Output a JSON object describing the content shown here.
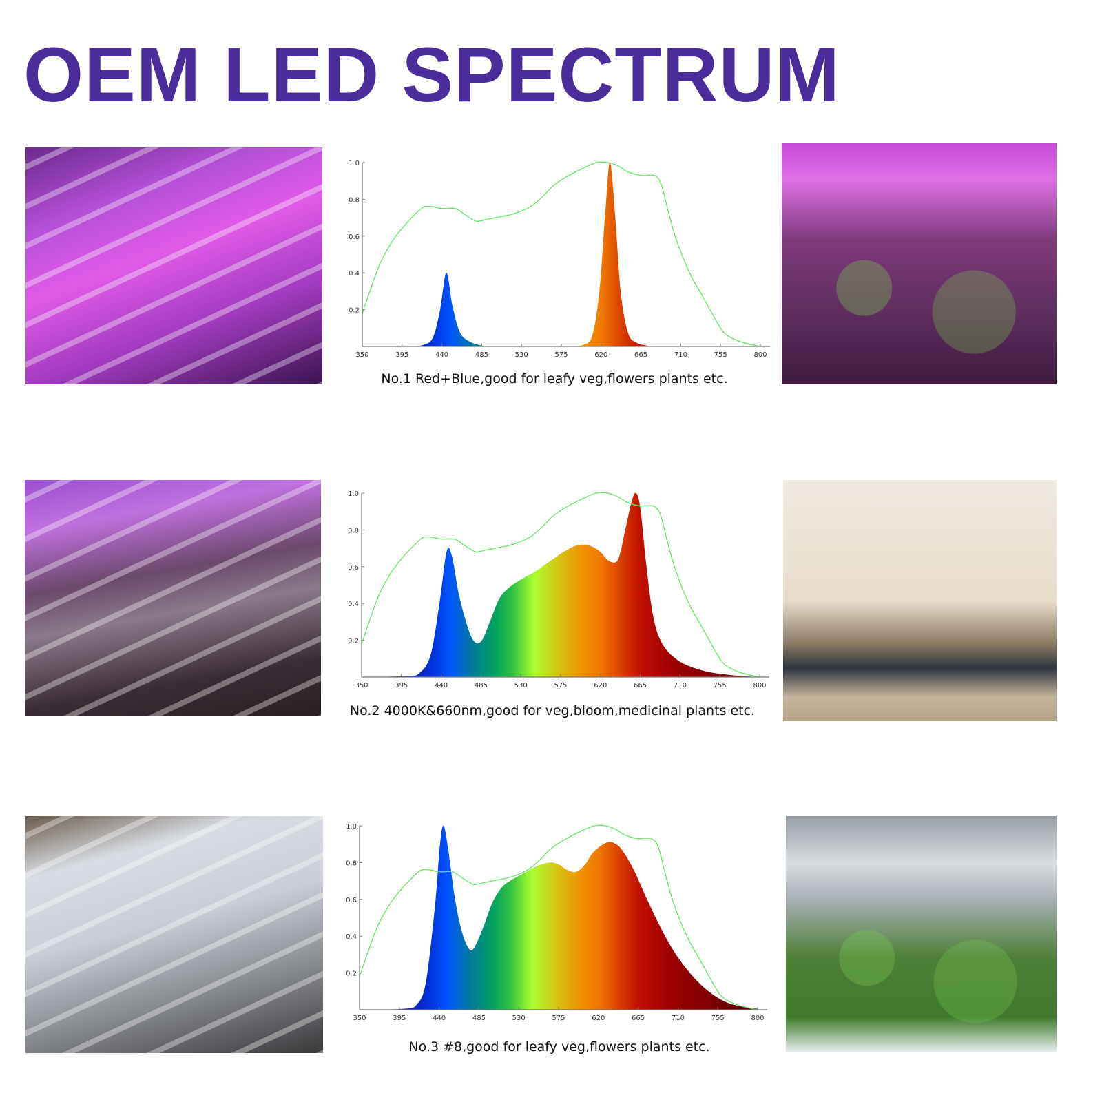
{
  "title": "OEM LED SPECTRUM",
  "colors": {
    "title": "#4a2d9b",
    "reference_curve": "#66e666"
  },
  "photos": [
    {
      "name": "photo-red-blue-led-tubes"
    },
    {
      "name": "photo-plants-under-purple-light"
    },
    {
      "name": "photo-4000k-660nm-led-tubes"
    },
    {
      "name": "photo-seedlings-shelf"
    },
    {
      "name": "photo-white-led-tubes"
    },
    {
      "name": "photo-leafy-greens-grow-tent"
    }
  ],
  "captions": [
    "No.1 Red+Blue,good for leafy veg,flowers plants etc.",
    "No.2 4000K&660nm,good for veg,bloom,medicinal plants etc.",
    "No.3 #8,good for leafy veg,flowers plants etc."
  ],
  "chart_data": [
    {
      "type": "area",
      "xlim": [
        350,
        800
      ],
      "ylim": [
        0,
        1.0
      ],
      "x_ticks": [
        "350",
        "395",
        "440",
        "485",
        "530",
        "575",
        "620",
        "665",
        "710",
        "755",
        "800"
      ],
      "y_ticks": [
        "0.2",
        "0.4",
        "0.6",
        "0.8",
        "1.0"
      ],
      "grid": false,
      "series": [
        {
          "role": "spectrum",
          "x": [
            350,
            400,
            420,
            430,
            438,
            445,
            452,
            460,
            470,
            485,
            500,
            580,
            600,
            610,
            618,
            625,
            630,
            636,
            642,
            650,
            660,
            680,
            700
          ],
          "y": [
            0,
            0,
            0.01,
            0.05,
            0.2,
            0.4,
            0.22,
            0.08,
            0.03,
            0.005,
            0,
            0,
            0.01,
            0.06,
            0.3,
            0.75,
            1.0,
            0.7,
            0.3,
            0.08,
            0.02,
            0,
            0
          ]
        },
        {
          "role": "reference",
          "x": [
            350,
            360,
            370,
            385,
            400,
            412,
            420,
            430,
            440,
            455,
            465,
            475,
            480,
            490,
            500,
            520,
            540,
            555,
            565,
            580,
            600,
            615,
            628,
            640,
            650,
            665,
            680,
            688,
            695,
            705,
            720,
            735,
            750,
            760,
            775,
            790,
            800
          ],
          "y": [
            0.18,
            0.32,
            0.45,
            0.58,
            0.67,
            0.73,
            0.76,
            0.76,
            0.75,
            0.75,
            0.72,
            0.69,
            0.68,
            0.69,
            0.7,
            0.72,
            0.76,
            0.82,
            0.87,
            0.92,
            0.97,
            1.0,
            1.0,
            0.98,
            0.95,
            0.93,
            0.93,
            0.88,
            0.75,
            0.58,
            0.4,
            0.27,
            0.14,
            0.07,
            0.03,
            0.01,
            0
          ]
        }
      ]
    },
    {
      "type": "area",
      "xlim": [
        350,
        800
      ],
      "ylim": [
        0,
        1.0
      ],
      "x_ticks": [
        "350",
        "395",
        "440",
        "485",
        "530",
        "575",
        "620",
        "665",
        "710",
        "755",
        "800"
      ],
      "y_ticks": [
        "0.2",
        "0.4",
        "0.6",
        "0.8",
        "1.0"
      ],
      "grid": false,
      "series": [
        {
          "role": "spectrum",
          "x": [
            350,
            400,
            415,
            428,
            438,
            446,
            452,
            460,
            470,
            478,
            486,
            495,
            505,
            515,
            530,
            545,
            560,
            575,
            590,
            600,
            610,
            620,
            630,
            640,
            648,
            655,
            660,
            665,
            672,
            680,
            690,
            705,
            720,
            740,
            760,
            780,
            800
          ],
          "y": [
            0,
            0.005,
            0.02,
            0.12,
            0.4,
            0.68,
            0.66,
            0.45,
            0.27,
            0.19,
            0.2,
            0.3,
            0.42,
            0.48,
            0.53,
            0.57,
            0.62,
            0.67,
            0.71,
            0.72,
            0.71,
            0.68,
            0.63,
            0.64,
            0.8,
            0.95,
            1.0,
            0.92,
            0.6,
            0.32,
            0.18,
            0.1,
            0.06,
            0.03,
            0.015,
            0.005,
            0
          ]
        },
        {
          "role": "reference",
          "x": [
            350,
            360,
            370,
            385,
            400,
            412,
            420,
            430,
            440,
            455,
            465,
            475,
            480,
            490,
            500,
            520,
            540,
            555,
            565,
            580,
            600,
            615,
            628,
            640,
            650,
            665,
            680,
            688,
            695,
            705,
            720,
            735,
            750,
            760,
            775,
            790,
            800
          ],
          "y": [
            0.18,
            0.32,
            0.45,
            0.58,
            0.67,
            0.73,
            0.76,
            0.76,
            0.75,
            0.75,
            0.72,
            0.69,
            0.68,
            0.69,
            0.7,
            0.72,
            0.76,
            0.82,
            0.87,
            0.92,
            0.97,
            1.0,
            1.0,
            0.98,
            0.95,
            0.93,
            0.93,
            0.88,
            0.75,
            0.58,
            0.4,
            0.27,
            0.14,
            0.07,
            0.03,
            0.01,
            0
          ]
        }
      ]
    },
    {
      "type": "area",
      "xlim": [
        350,
        800
      ],
      "ylim": [
        0,
        1.0
      ],
      "x_ticks": [
        "350",
        "395",
        "440",
        "485",
        "530",
        "575",
        "620",
        "665",
        "710",
        "755",
        "800"
      ],
      "y_ticks": [
        "0.2",
        "0.4",
        "0.6",
        "0.8",
        "1.0"
      ],
      "grid": false,
      "series": [
        {
          "role": "spectrum",
          "x": [
            350,
            400,
            415,
            425,
            435,
            441,
            445,
            450,
            458,
            466,
            474,
            480,
            490,
            500,
            510,
            520,
            535,
            550,
            565,
            575,
            585,
            595,
            605,
            615,
            630,
            640,
            648,
            660,
            675,
            690,
            705,
            720,
            735,
            750,
            765,
            780,
            800
          ],
          "y": [
            0,
            0.005,
            0.03,
            0.15,
            0.55,
            0.9,
            1.0,
            0.88,
            0.6,
            0.42,
            0.33,
            0.34,
            0.45,
            0.58,
            0.66,
            0.7,
            0.74,
            0.78,
            0.8,
            0.79,
            0.76,
            0.75,
            0.79,
            0.86,
            0.91,
            0.9,
            0.86,
            0.76,
            0.6,
            0.45,
            0.32,
            0.22,
            0.14,
            0.08,
            0.04,
            0.02,
            0.005
          ]
        },
        {
          "role": "reference",
          "x": [
            350,
            360,
            370,
            385,
            400,
            412,
            420,
            430,
            440,
            455,
            465,
            475,
            480,
            490,
            500,
            520,
            540,
            555,
            565,
            580,
            600,
            615,
            628,
            640,
            650,
            665,
            680,
            688,
            695,
            705,
            720,
            735,
            750,
            760,
            775,
            790,
            800
          ],
          "y": [
            0.18,
            0.32,
            0.45,
            0.58,
            0.67,
            0.73,
            0.76,
            0.76,
            0.75,
            0.75,
            0.72,
            0.69,
            0.68,
            0.69,
            0.7,
            0.72,
            0.76,
            0.82,
            0.87,
            0.92,
            0.97,
            1.0,
            1.0,
            0.98,
            0.95,
            0.93,
            0.93,
            0.88,
            0.75,
            0.58,
            0.4,
            0.27,
            0.14,
            0.07,
            0.03,
            0.01,
            0
          ]
        }
      ]
    }
  ]
}
